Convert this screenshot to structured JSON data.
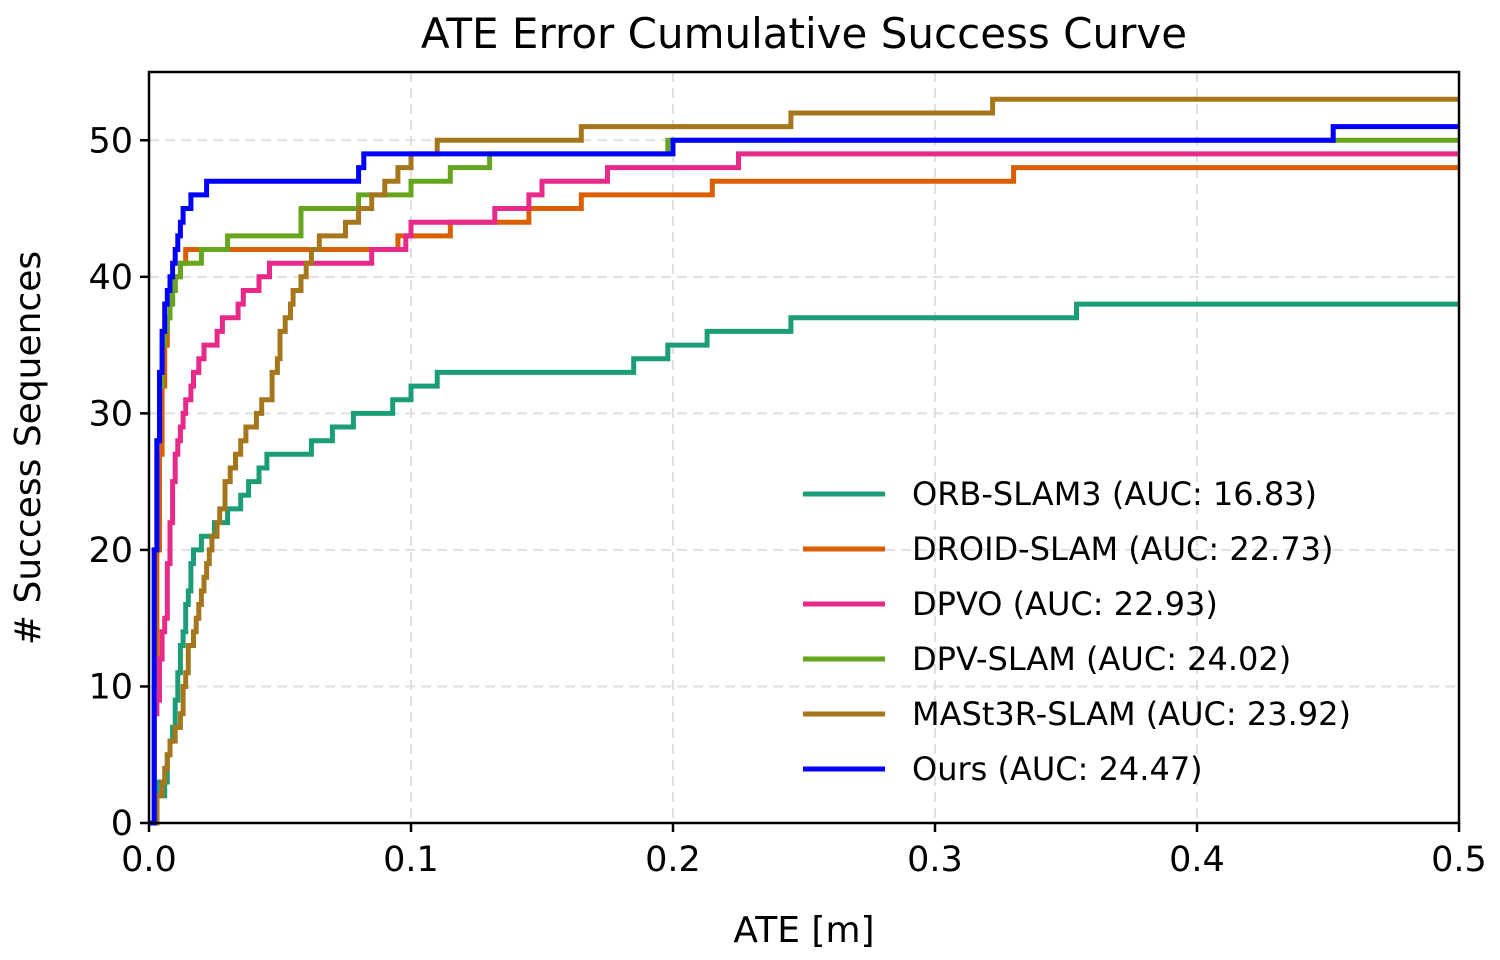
{
  "chart_data": {
    "type": "line",
    "title": "ATE Error Cumulative Success Curve",
    "xlabel": "ATE [m]",
    "ylabel": "# Success Sequences",
    "xlim": [
      0,
      0.5
    ],
    "ylim": [
      0,
      55
    ],
    "xticks": [
      0.0,
      0.1,
      0.2,
      0.3,
      0.4,
      0.5
    ],
    "xtick_labels": [
      "0.0",
      "0.1",
      "0.2",
      "0.3",
      "0.4",
      "0.5"
    ],
    "yticks": [
      0,
      10,
      20,
      30,
      40,
      50
    ],
    "ytick_labels": [
      "0",
      "10",
      "20",
      "30",
      "40",
      "50"
    ],
    "grid": true,
    "legend_position": "lower-right",
    "series": [
      {
        "name": "ORB-SLAM3 (AUC: 16.83)",
        "color": "#1b9e77",
        "x": [
          0.0,
          0.003,
          0.004,
          0.005,
          0.006,
          0.007,
          0.008,
          0.009,
          0.01,
          0.011,
          0.012,
          0.013,
          0.014,
          0.015,
          0.016,
          0.017,
          0.018,
          0.019,
          0.02,
          0.025,
          0.03,
          0.035,
          0.038,
          0.04,
          0.042,
          0.045,
          0.06,
          0.062,
          0.068,
          0.07,
          0.075,
          0.078,
          0.08,
          0.09,
          0.093,
          0.095,
          0.1,
          0.105,
          0.11,
          0.115,
          0.15,
          0.182,
          0.185,
          0.195,
          0.198,
          0.21,
          0.213,
          0.23,
          0.243,
          0.245,
          0.3,
          0.352,
          0.354,
          0.5
        ],
        "y": [
          0,
          3,
          3,
          2,
          3,
          5,
          6,
          7,
          9,
          11,
          13,
          14,
          16,
          17,
          19,
          20,
          20,
          20,
          21,
          22,
          23,
          24,
          25,
          25,
          26,
          27,
          27,
          28,
          28,
          29,
          29,
          30,
          30,
          30,
          31,
          31,
          32,
          32,
          33,
          33,
          33,
          33,
          34,
          34,
          35,
          35,
          36,
          36,
          36,
          37,
          37,
          37,
          38,
          38
        ]
      },
      {
        "name": "DROID-SLAM (AUC: 22.73)",
        "color": "#d95f02",
        "x": [
          0.0,
          0.002,
          0.003,
          0.004,
          0.005,
          0.006,
          0.007,
          0.008,
          0.009,
          0.01,
          0.011,
          0.012,
          0.014,
          0.015,
          0.06,
          0.09,
          0.095,
          0.1,
          0.11,
          0.115,
          0.13,
          0.135,
          0.14,
          0.145,
          0.16,
          0.165,
          0.175,
          0.19,
          0.21,
          0.215,
          0.25,
          0.3,
          0.325,
          0.33,
          0.5
        ],
        "y": [
          0,
          10,
          20,
          27,
          32,
          35,
          37,
          38,
          39,
          40,
          40,
          41,
          42,
          42,
          42,
          42,
          43,
          43,
          43,
          44,
          44,
          44,
          44,
          45,
          45,
          46,
          46,
          46,
          46,
          47,
          47,
          47,
          47,
          48,
          48
        ]
      },
      {
        "name": "DPVO (AUC: 22.93)",
        "color": "#e7298a",
        "x": [
          0.0,
          0.002,
          0.003,
          0.004,
          0.005,
          0.006,
          0.007,
          0.008,
          0.009,
          0.01,
          0.011,
          0.012,
          0.013,
          0.014,
          0.015,
          0.016,
          0.017,
          0.018,
          0.019,
          0.02,
          0.021,
          0.022,
          0.024,
          0.026,
          0.028,
          0.03,
          0.034,
          0.036,
          0.04,
          0.042,
          0.044,
          0.046,
          0.05,
          0.08,
          0.085,
          0.095,
          0.097,
          0.098,
          0.1,
          0.11,
          0.125,
          0.13,
          0.132,
          0.135,
          0.14,
          0.145,
          0.15,
          0.16,
          0.175,
          0.18,
          0.21,
          0.215,
          0.22,
          0.225,
          0.5
        ],
        "y": [
          0,
          8,
          9,
          12,
          14,
          15,
          19,
          22,
          25,
          27,
          28,
          29,
          30,
          31,
          31,
          32,
          33,
          33,
          34,
          34,
          35,
          35,
          35,
          36,
          37,
          37,
          38,
          39,
          39,
          40,
          40,
          41,
          41,
          41,
          42,
          42,
          42,
          43,
          44,
          44,
          44,
          44,
          45,
          45,
          45,
          46,
          47,
          47,
          48,
          48,
          48,
          48,
          48,
          49,
          49
        ]
      },
      {
        "name": "DPV-SLAM (AUC: 24.02)",
        "color": "#66a61e",
        "x": [
          0.0,
          0.002,
          0.003,
          0.004,
          0.005,
          0.006,
          0.007,
          0.008,
          0.009,
          0.01,
          0.012,
          0.015,
          0.018,
          0.02,
          0.025,
          0.03,
          0.055,
          0.058,
          0.07,
          0.075,
          0.08,
          0.09,
          0.095,
          0.1,
          0.105,
          0.115,
          0.12,
          0.13,
          0.135,
          0.18,
          0.195,
          0.198,
          0.5
        ],
        "y": [
          0,
          20,
          28,
          32,
          35,
          36,
          37,
          38,
          39,
          40,
          41,
          41,
          41,
          42,
          42,
          43,
          43,
          45,
          45,
          45,
          46,
          46,
          46,
          47,
          47,
          48,
          48,
          49,
          49,
          49,
          49,
          50,
          50
        ]
      },
      {
        "name": "MASt3R-SLAM (AUC: 23.92)",
        "color": "#a6761d",
        "x": [
          0.0,
          0.003,
          0.004,
          0.005,
          0.006,
          0.007,
          0.008,
          0.009,
          0.01,
          0.012,
          0.013,
          0.014,
          0.015,
          0.016,
          0.017,
          0.018,
          0.019,
          0.02,
          0.021,
          0.022,
          0.023,
          0.024,
          0.026,
          0.027,
          0.029,
          0.031,
          0.033,
          0.035,
          0.037,
          0.039,
          0.041,
          0.043,
          0.045,
          0.047,
          0.049,
          0.05,
          0.052,
          0.054,
          0.055,
          0.058,
          0.06,
          0.062,
          0.065,
          0.072,
          0.075,
          0.08,
          0.085,
          0.09,
          0.095,
          0.1,
          0.11,
          0.16,
          0.165,
          0.24,
          0.245,
          0.32,
          0.322,
          0.5
        ],
        "y": [
          0,
          2,
          2,
          3,
          4,
          5,
          6,
          6,
          7,
          8,
          10,
          11,
          13,
          13,
          14,
          15,
          16,
          17,
          18,
          19,
          20,
          21,
          22,
          23,
          25,
          26,
          27,
          28,
          29,
          29,
          30,
          31,
          31,
          33,
          34,
          36,
          37,
          38,
          39,
          40,
          41,
          42,
          43,
          43,
          44,
          45,
          46,
          47,
          48,
          49,
          50,
          50,
          51,
          51,
          52,
          52,
          53,
          53
        ]
      },
      {
        "name": "Ours (AUC: 24.47)",
        "color": "#0000ff",
        "x": [
          0.0,
          0.002,
          0.003,
          0.004,
          0.005,
          0.006,
          0.007,
          0.008,
          0.009,
          0.01,
          0.011,
          0.012,
          0.013,
          0.014,
          0.016,
          0.018,
          0.02,
          0.022,
          0.025,
          0.03,
          0.078,
          0.08,
          0.082,
          0.1,
          0.15,
          0.195,
          0.198,
          0.2,
          0.25,
          0.45,
          0.452,
          0.5
        ],
        "y": [
          0,
          20,
          28,
          33,
          36,
          38,
          39,
          40,
          41,
          42,
          43,
          44,
          45,
          45,
          46,
          46,
          46,
          47,
          47,
          47,
          47,
          48,
          49,
          49,
          49,
          49,
          49,
          50,
          50,
          50,
          51,
          51
        ]
      }
    ]
  }
}
